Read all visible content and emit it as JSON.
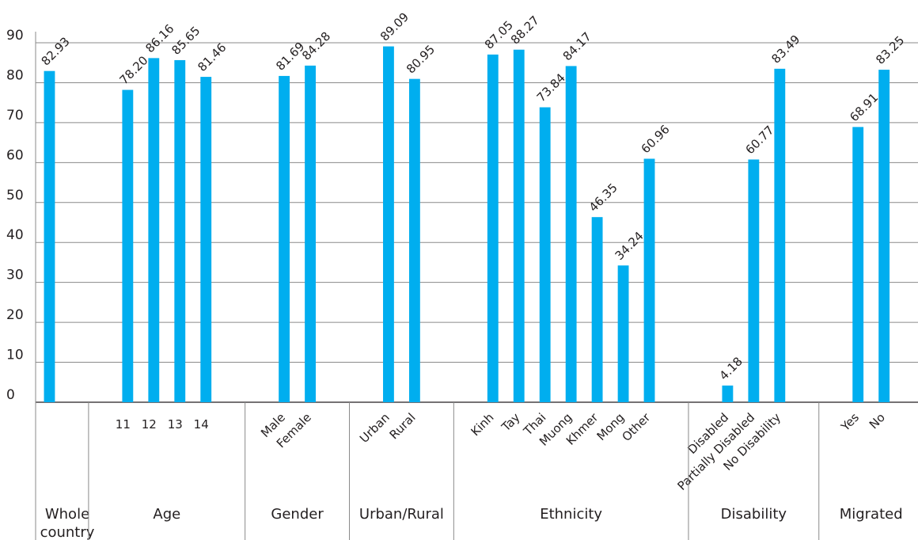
{
  "chart_data": {
    "type": "bar",
    "ylim": [
      0,
      90
    ],
    "yticks": [
      0,
      10,
      20,
      30,
      40,
      50,
      60,
      70,
      80,
      90
    ],
    "grid": true,
    "legend": "none",
    "bar_color": "#00aeef",
    "groups": [
      {
        "label": "Whole country",
        "label_lines": [
          "Whole",
          "country"
        ],
        "bars": [
          {
            "category": "",
            "value": 82.93,
            "label": "82.93"
          }
        ]
      },
      {
        "label": "Age",
        "bars": [
          {
            "category": "11",
            "value": 78.2,
            "label": "78.20"
          },
          {
            "category": "12",
            "value": 86.16,
            "label": "86.16"
          },
          {
            "category": "13",
            "value": 85.65,
            "label": "85.65"
          },
          {
            "category": "14",
            "value": 81.46,
            "label": "81.46"
          }
        ]
      },
      {
        "label": "Gender",
        "bars": [
          {
            "category": "Male",
            "value": 81.69,
            "label": "81.69"
          },
          {
            "category": "Female",
            "value": 84.28,
            "label": "84.28"
          }
        ]
      },
      {
        "label": "Urban/Rural",
        "bars": [
          {
            "category": "Urban",
            "value": 89.09,
            "label": "89.09"
          },
          {
            "category": "Rural",
            "value": 80.95,
            "label": "80.95"
          }
        ]
      },
      {
        "label": "Ethnicity",
        "bars": [
          {
            "category": "Kinh",
            "value": 87.05,
            "label": "87.05"
          },
          {
            "category": "Tay",
            "value": 88.27,
            "label": "88.27"
          },
          {
            "category": "Thai",
            "value": 73.84,
            "label": "73.84"
          },
          {
            "category": "Muong",
            "value": 84.17,
            "label": "84.17"
          },
          {
            "category": "Khmer",
            "value": 46.35,
            "label": "46.35"
          },
          {
            "category": "Mong",
            "value": 34.24,
            "label": "34.24"
          },
          {
            "category": "Other",
            "value": 60.96,
            "label": "60.96"
          }
        ]
      },
      {
        "label": "Disability",
        "bars": [
          {
            "category": "Disabled",
            "value": 4.18,
            "label": "4.18"
          },
          {
            "category": "Partially Disabled",
            "value": 60.77,
            "label": "60.77"
          },
          {
            "category": "No Disability",
            "value": 83.49,
            "label": "83.49"
          }
        ]
      },
      {
        "label": "Migrated",
        "bars": [
          {
            "category": "Yes",
            "value": 68.91,
            "label": "68.91"
          },
          {
            "category": "No",
            "value": 83.25,
            "label": "83.25"
          }
        ]
      }
    ]
  }
}
